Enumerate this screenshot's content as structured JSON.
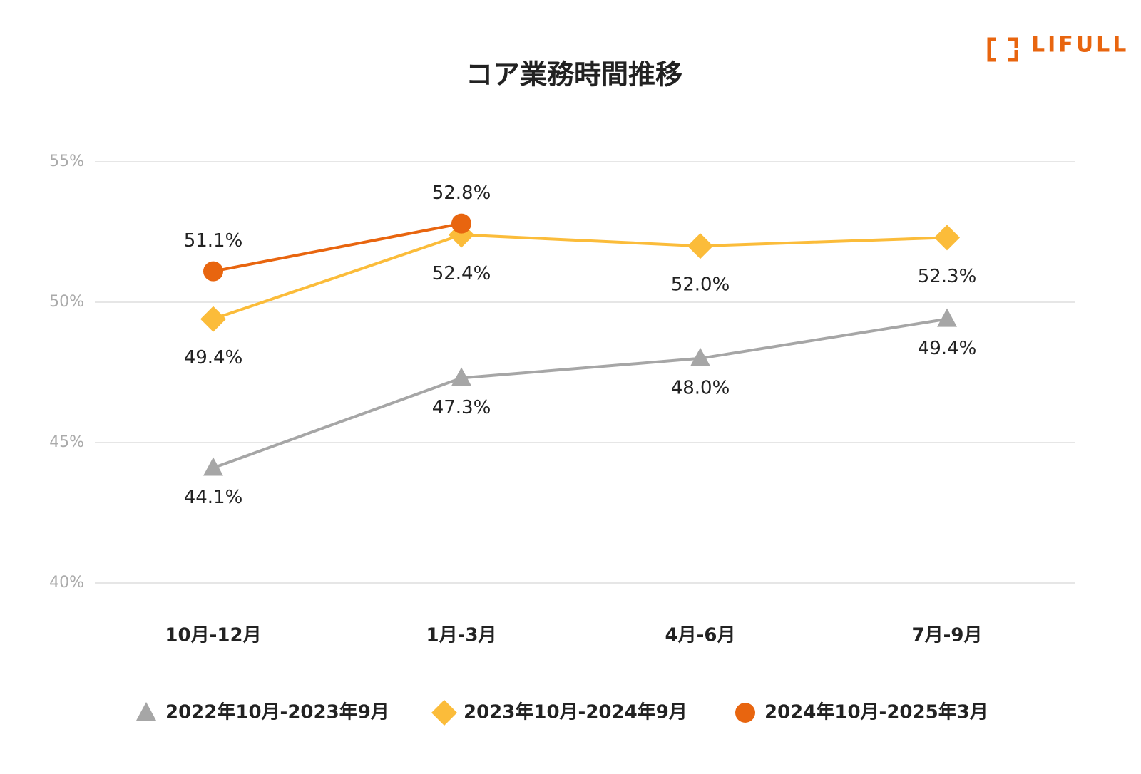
{
  "brand": "LIFULL",
  "chart_data": {
    "type": "line",
    "title": "コア業務時間推移",
    "categories": [
      "10月-12月",
      "1月-3月",
      "4月-6月",
      "7月-9月"
    ],
    "series": [
      {
        "name": "2022年10月-2023年9月",
        "color": "#a6a6a6",
        "marker": "triangle",
        "values": [
          44.1,
          47.3,
          48.0,
          49.4
        ],
        "value_labels": [
          "44.1%",
          "47.3%",
          "48.0%",
          "49.4%"
        ]
      },
      {
        "name": "2023年10月-2024年9月",
        "color": "#fbbc3a",
        "marker": "diamond",
        "values": [
          49.4,
          52.4,
          52.0,
          52.3
        ],
        "value_labels": [
          "49.4%",
          "52.4%",
          "52.0%",
          "52.3%"
        ]
      },
      {
        "name": "2024年10月-2025年3月",
        "color": "#e8650f",
        "marker": "circle",
        "values": [
          51.1,
          52.8,
          null,
          null
        ],
        "value_labels": [
          "51.1%",
          "52.8%",
          null,
          null
        ]
      }
    ],
    "ylim": [
      40,
      55
    ],
    "yticks": [
      {
        "value": 40,
        "label": "40%"
      },
      {
        "value": 45,
        "label": "45%"
      },
      {
        "value": 50,
        "label": "50%"
      },
      {
        "value": 55,
        "label": "55%"
      }
    ],
    "grid": true,
    "legend": "bottom"
  }
}
